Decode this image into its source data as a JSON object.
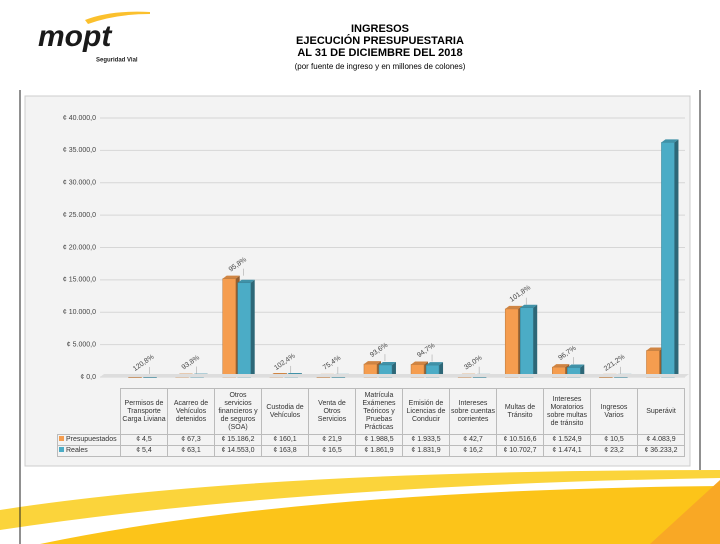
{
  "header": {
    "logo": "mopt",
    "logo_subtitle": "Seguridad Vial"
  },
  "chart_data": {
    "type": "bar",
    "title": "INGRESOS",
    "subtitle_lines": [
      "EJECUCIÓN PRESUPUESTARIA",
      "AL 31 DE DICIEMBRE DEL 2018",
      "(por fuente de ingreso y en millones de colones)"
    ],
    "categories": [
      "Permisos de Transporte Carga Liviana",
      "Acarreo de Vehículos detenidos",
      "Otros servicios financieros y de seguros (SOA)",
      "Custodia de Vehículos",
      "Venta de Otros Servicios",
      "Matrícula Exámenes Teóricos y Pruebas Prácticas",
      "Emisión de Licencias de Conducir",
      "Intereses sobre cuentas corrientes",
      "Multas de Tránsito",
      "Intereses Moratorios sobre multas de tránsito",
      "Ingresos Varios",
      "Superávit"
    ],
    "series": [
      {
        "name": "Presupuestados",
        "color": "#f59d4f",
        "values": [
          4.5,
          67.3,
          15186.2,
          160.1,
          21.9,
          1988.5,
          1933.5,
          42.7,
          10516.6,
          1524.9,
          10.5,
          4083.9
        ],
        "value_labels": [
          "¢ 4,5",
          "¢ 67,3",
          "¢ 15.186,2",
          "¢ 160,1",
          "¢ 21,9",
          "¢ 1.988,5",
          "¢ 1.933,5",
          "¢ 42,7",
          "¢ 10.516,6",
          "¢ 1.524,9",
          "¢ 10,5",
          "¢ 4.083,9"
        ]
      },
      {
        "name": "Reales",
        "color": "#4bacc6",
        "values": [
          5.4,
          63.1,
          14553.0,
          163.8,
          16.5,
          1861.9,
          1831.9,
          16.2,
          10702.7,
          1474.1,
          23.2,
          36233.2
        ],
        "value_labels": [
          "¢ 5,4",
          "¢ 63,1",
          "¢ 14.553,0",
          "¢ 163,8",
          "¢ 16,5",
          "¢ 1.861,9",
          "¢ 1.831,9",
          "¢ 16,2",
          "¢ 10.702,7",
          "¢ 1.474,1",
          "¢ 23,2",
          "¢ 36.233,2"
        ]
      }
    ],
    "annotations": [
      "120,8%",
      "93,8%",
      "95,8%",
      "102,4%",
      "75,4%",
      "93,6%",
      "94,7%",
      "38,0%",
      "101,8%",
      "96,7%",
      "221,2%",
      null
    ],
    "ylim": [
      0,
      40000
    ],
    "yticks": [
      {
        "value": 0,
        "label": "¢ 0,0"
      },
      {
        "value": 5000,
        "label": "¢ 5.000,0"
      },
      {
        "value": 10000,
        "label": "¢ 10.000,0"
      },
      {
        "value": 15000,
        "label": "¢ 15.000,0"
      },
      {
        "value": 20000,
        "label": "¢ 20.000,0"
      },
      {
        "value": 25000,
        "label": "¢ 25.000,0"
      },
      {
        "value": 30000,
        "label": "¢ 30.000,0"
      },
      {
        "value": 35000,
        "label": "¢ 35.000,0"
      },
      {
        "value": 40000,
        "label": "¢ 40.000,0"
      }
    ],
    "grid": true
  }
}
